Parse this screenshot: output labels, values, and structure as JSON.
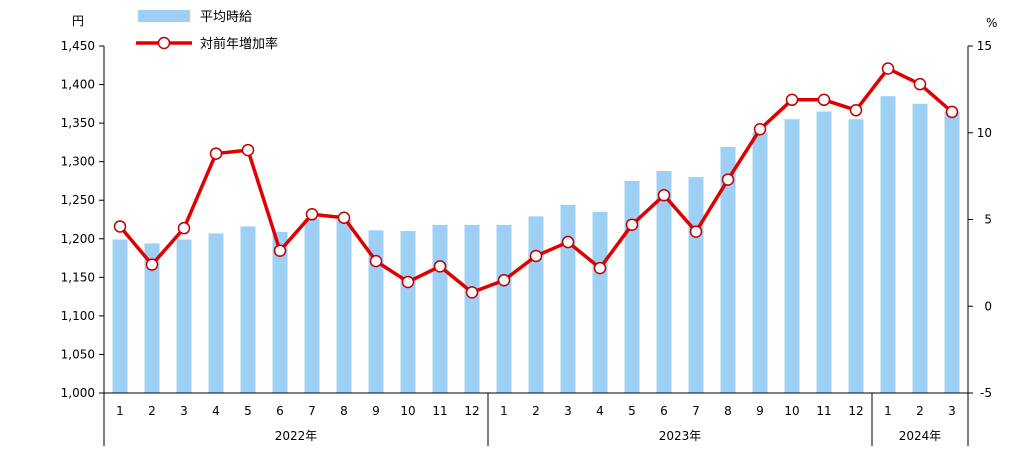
{
  "chart_data": {
    "type": "bar+line",
    "left_axis": {
      "unit": "円",
      "ylim": [
        1000,
        1450
      ],
      "ticks": [
        1000,
        1050,
        1100,
        1150,
        1200,
        1250,
        1300,
        1350,
        1400,
        1450
      ]
    },
    "right_axis": {
      "unit": "%",
      "ylim": [
        -5,
        15
      ],
      "ticks": [
        -5,
        0,
        5,
        10,
        15
      ]
    },
    "months": [
      "1",
      "2",
      "3",
      "4",
      "5",
      "6",
      "7",
      "8",
      "9",
      "10",
      "11",
      "12",
      "1",
      "2",
      "3",
      "4",
      "5",
      "6",
      "7",
      "8",
      "9",
      "10",
      "11",
      "12",
      "1",
      "2",
      "3"
    ],
    "years": [
      {
        "label": "2022年",
        "count": 12
      },
      {
        "label": "2023年",
        "count": 12
      },
      {
        "label": "2024年",
        "count": 3
      }
    ],
    "legend": {
      "placement": "top-left"
    },
    "series": [
      {
        "name": "平均時給",
        "kind": "bar",
        "axis": "left",
        "color": "#9ecff5",
        "values": [
          1199,
          1194,
          1199,
          1207,
          1216,
          1209,
          1226,
          1225,
          1211,
          1210,
          1218,
          1218,
          1218,
          1229,
          1244,
          1235,
          1275,
          1288,
          1280,
          1319,
          1338,
          1355,
          1365,
          1355,
          1385,
          1375,
          1365
        ]
      },
      {
        "name": "対前年増加率",
        "kind": "line",
        "axis": "right",
        "color": "#e00000",
        "marker": "circle-white",
        "values": [
          4.6,
          2.4,
          4.5,
          8.8,
          9.0,
          3.2,
          5.3,
          5.1,
          2.6,
          1.4,
          2.3,
          0.8,
          1.5,
          2.9,
          3.7,
          2.2,
          4.7,
          6.4,
          4.3,
          7.3,
          10.2,
          11.9,
          11.9,
          11.3,
          13.7,
          12.8,
          11.2
        ]
      }
    ]
  }
}
